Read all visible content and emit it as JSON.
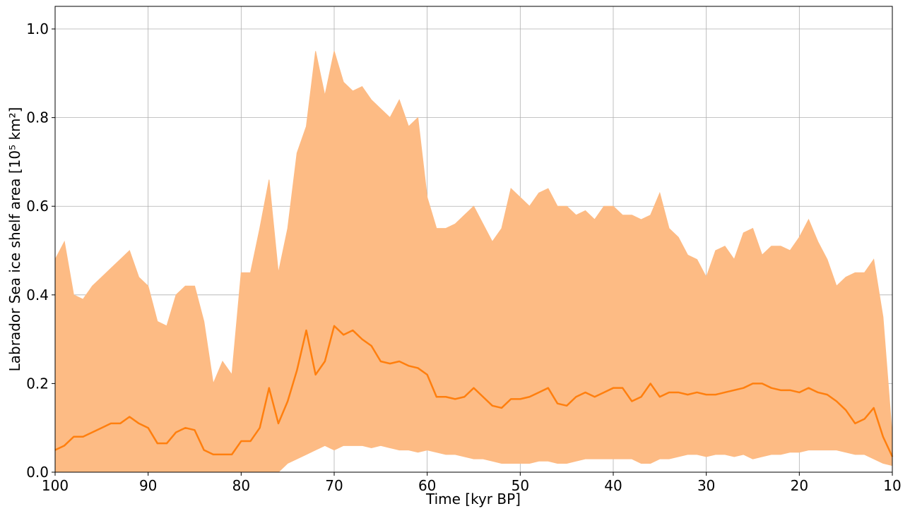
{
  "chart_data": {
    "type": "line",
    "xlabel": "Time [kyr BP]",
    "ylabel": "Labrador Sea ice shelf area [10⁵ km²]",
    "xlim": [
      100,
      10
    ],
    "ylim": [
      0,
      1.051
    ],
    "xticks": [
      100,
      90,
      80,
      70,
      60,
      50,
      40,
      30,
      20,
      10
    ],
    "yticks": [
      {
        "value": 0,
        "label": "0.0"
      },
      0.2,
      0.4,
      0.6,
      0.8,
      {
        "value": 1,
        "label": "1.0"
      }
    ],
    "grid": true,
    "x": [
      100,
      99,
      98,
      97,
      96,
      95,
      94,
      93,
      92,
      91,
      90,
      89,
      88,
      87,
      86,
      85,
      84,
      83,
      82,
      81,
      80,
      79,
      78,
      77,
      76,
      75,
      74,
      73,
      72,
      71,
      70,
      69,
      68,
      67,
      66,
      65,
      64,
      63,
      62,
      61,
      60,
      59,
      58,
      57,
      56,
      55,
      54,
      53,
      52,
      51,
      50,
      49,
      48,
      47,
      46,
      45,
      44,
      43,
      42,
      41,
      40,
      39,
      38,
      37,
      36,
      35,
      34,
      33,
      32,
      31,
      30,
      29,
      28,
      27,
      26,
      25,
      24,
      23,
      22,
      21,
      20,
      19,
      18,
      17,
      16,
      15,
      14,
      13,
      12,
      11,
      10
    ],
    "band": {
      "color": "#fdbb84",
      "upper": [
        0.48,
        0.52,
        0.4,
        0.39,
        0.42,
        0.44,
        0.46,
        0.48,
        0.5,
        0.44,
        0.42,
        0.34,
        0.33,
        0.4,
        0.42,
        0.42,
        0.34,
        0.2,
        0.25,
        0.22,
        0.45,
        0.45,
        0.55,
        0.66,
        0.45,
        0.55,
        0.72,
        0.78,
        0.95,
        0.85,
        0.95,
        0.88,
        0.86,
        0.87,
        0.84,
        0.82,
        0.8,
        0.84,
        0.78,
        0.8,
        0.62,
        0.55,
        0.55,
        0.56,
        0.58,
        0.6,
        0.56,
        0.52,
        0.55,
        0.64,
        0.62,
        0.6,
        0.63,
        0.64,
        0.6,
        0.6,
        0.58,
        0.59,
        0.57,
        0.6,
        0.6,
        0.58,
        0.58,
        0.57,
        0.58,
        0.63,
        0.55,
        0.53,
        0.49,
        0.48,
        0.44,
        0.5,
        0.51,
        0.48,
        0.54,
        0.55,
        0.49,
        0.51,
        0.51,
        0.5,
        0.53,
        0.57,
        0.52,
        0.48,
        0.42,
        0.44,
        0.45,
        0.45,
        0.48,
        0.35,
        0.08
      ],
      "lower": [
        0,
        0,
        0,
        0,
        0,
        0,
        0,
        0,
        0,
        0,
        0,
        0,
        0,
        0,
        0,
        0,
        0,
        0,
        0,
        0,
        0,
        0,
        0,
        0,
        0,
        0.02,
        0.03,
        0.04,
        0.05,
        0.06,
        0.05,
        0.06,
        0.06,
        0.06,
        0.055,
        0.06,
        0.055,
        0.05,
        0.05,
        0.045,
        0.05,
        0.045,
        0.04,
        0.04,
        0.035,
        0.03,
        0.03,
        0.025,
        0.02,
        0.02,
        0.02,
        0.02,
        0.025,
        0.025,
        0.02,
        0.02,
        0.025,
        0.03,
        0.03,
        0.03,
        0.03,
        0.03,
        0.03,
        0.02,
        0.02,
        0.03,
        0.03,
        0.035,
        0.04,
        0.04,
        0.035,
        0.04,
        0.04,
        0.035,
        0.04,
        0.03,
        0.035,
        0.04,
        0.04,
        0.045,
        0.045,
        0.05,
        0.05,
        0.05,
        0.05,
        0.045,
        0.04,
        0.04,
        0.03,
        0.02,
        0.015
      ]
    },
    "series": [
      {
        "color": "#ff7f0e",
        "values": [
          0.05,
          0.06,
          0.08,
          0.08,
          0.09,
          0.1,
          0.11,
          0.11,
          0.125,
          0.11,
          0.1,
          0.065,
          0.065,
          0.09,
          0.1,
          0.095,
          0.05,
          0.04,
          0.04,
          0.04,
          0.07,
          0.07,
          0.1,
          0.19,
          0.11,
          0.16,
          0.23,
          0.32,
          0.22,
          0.25,
          0.33,
          0.31,
          0.32,
          0.3,
          0.285,
          0.25,
          0.245,
          0.25,
          0.24,
          0.235,
          0.22,
          0.17,
          0.17,
          0.165,
          0.17,
          0.19,
          0.17,
          0.15,
          0.145,
          0.165,
          0.165,
          0.17,
          0.18,
          0.19,
          0.155,
          0.15,
          0.17,
          0.18,
          0.17,
          0.18,
          0.19,
          0.19,
          0.16,
          0.17,
          0.2,
          0.17,
          0.18,
          0.18,
          0.175,
          0.18,
          0.175,
          0.175,
          0.18,
          0.185,
          0.19,
          0.2,
          0.2,
          0.19,
          0.185,
          0.185,
          0.18,
          0.19,
          0.18,
          0.175,
          0.16,
          0.14,
          0.11,
          0.12,
          0.145,
          0.08,
          0.035
        ]
      }
    ]
  }
}
